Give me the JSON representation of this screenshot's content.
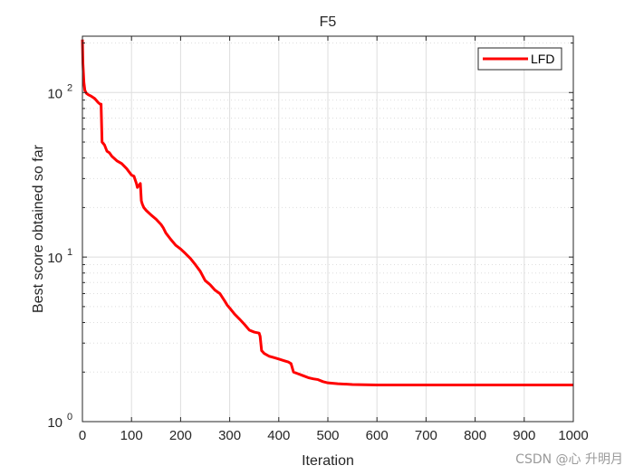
{
  "chart_data": {
    "type": "line",
    "title": "F5",
    "xlabel": "Iteration",
    "ylabel": "Best score obtained so far",
    "x_ticks": [
      "0",
      "100",
      "200",
      "300",
      "400",
      "500",
      "600",
      "700",
      "800",
      "900",
      "1000"
    ],
    "y_ticks": [
      {
        "base": "10",
        "exp": "0"
      },
      {
        "base": "10",
        "exp": "1"
      },
      {
        "base": "10",
        "exp": "2"
      }
    ],
    "xlim": [
      0,
      1000
    ],
    "ylim": [
      1,
      220
    ],
    "yscale": "log",
    "grid": true,
    "legend_position": "top-right",
    "series": [
      {
        "name": "LFD",
        "color": "#ff0000",
        "x": [
          0,
          1,
          3,
          5,
          8,
          12,
          18,
          25,
          32,
          36,
          38,
          40,
          45,
          50,
          55,
          60,
          70,
          80,
          90,
          100,
          105,
          110,
          112,
          118,
          120,
          122,
          125,
          130,
          140,
          150,
          160,
          165,
          170,
          180,
          190,
          200,
          210,
          220,
          230,
          240,
          250,
          255,
          260,
          270,
          280,
          290,
          295,
          300,
          310,
          320,
          330,
          340,
          350,
          360,
          362,
          365,
          370,
          380,
          390,
          400,
          410,
          420,
          425,
          430,
          440,
          450,
          460,
          470,
          480,
          490,
          500,
          520,
          550,
          600,
          700,
          800,
          900,
          1000
        ],
        "y": [
          210,
          150,
          115,
          103,
          99,
          97,
          95,
          92,
          87,
          85,
          85,
          50,
          48,
          44,
          43,
          41,
          38.5,
          37,
          34.5,
          31.5,
          31,
          28,
          26.5,
          28,
          22,
          21,
          20,
          19.2,
          18,
          17,
          15.8,
          15,
          14,
          12.8,
          11.8,
          11.2,
          10.5,
          9.8,
          9,
          8.2,
          7.2,
          7,
          6.8,
          6.3,
          6,
          5.4,
          5.1,
          4.9,
          4.5,
          4.2,
          3.9,
          3.6,
          3.5,
          3.45,
          3.3,
          2.7,
          2.6,
          2.5,
          2.45,
          2.4,
          2.35,
          2.3,
          2.25,
          2.0,
          1.95,
          1.9,
          1.85,
          1.82,
          1.8,
          1.75,
          1.72,
          1.7,
          1.68,
          1.67,
          1.67,
          1.67,
          1.67,
          1.67
        ]
      }
    ]
  },
  "watermark": "CSDN @心 升明月",
  "colors": {
    "line": "#ff0000",
    "grid": "#dedede",
    "axis": "#262626"
  }
}
